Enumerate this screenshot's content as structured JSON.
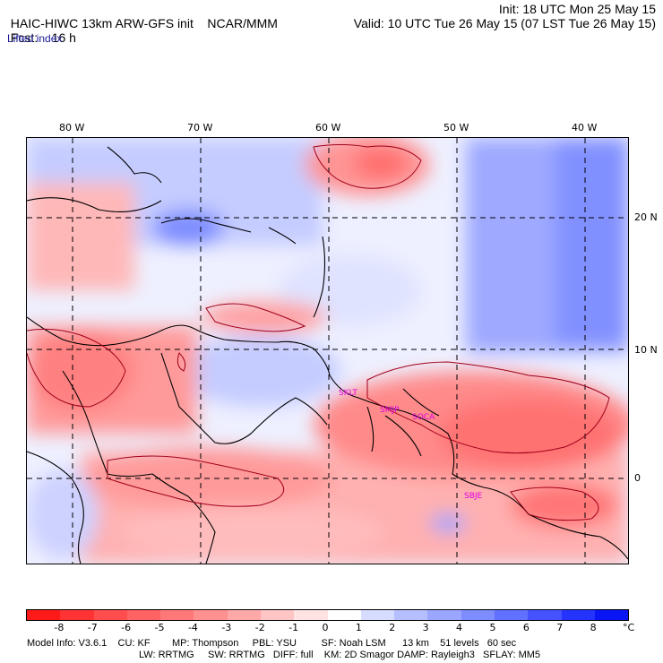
{
  "header": {
    "model": "HAIC-HIWC 13km ARW-GFS init",
    "org": "NCAR/MMM",
    "init": "Init: 18 UTC Mon 25 May 15",
    "fcst_label": "Fcst:",
    "fcst_value": "16 h",
    "valid": "Valid: 10 UTC Tue 26 May 15 (07 LST Tue 26 May 15)",
    "field": "Lifted index"
  },
  "map": {
    "lon_labels": [
      "80 W",
      "70 W",
      "60 W",
      "50 W",
      "40 W"
    ],
    "lat_labels": [
      "20 N",
      "10 N",
      "0"
    ],
    "stations": [
      "SKLT",
      "SMJP",
      "SOCA",
      "SBJE"
    ]
  },
  "colorbar": {
    "labels": [
      "-8",
      "-7",
      "-6",
      "-5",
      "-4",
      "-3",
      "-2",
      "-1",
      "0",
      "1",
      "2",
      "3",
      "4",
      "5",
      "6",
      "7",
      "8"
    ],
    "unit": "°C",
    "colors": [
      "#ff1a1a",
      "#ff3333",
      "#ff4d4d",
      "#ff6262",
      "#ff7878",
      "#ff9090",
      "#ffa8a8",
      "#ffc4c4",
      "#ffe2e2",
      "#ffffff",
      "#d6dcff",
      "#b5bfff",
      "#9aa6ff",
      "#7d8cff",
      "#6070ff",
      "#4452ff",
      "#2533ff",
      "#0a15f5"
    ]
  },
  "footer": {
    "line1": "Model Info: V3.6.1    CU: KF        MP: Thompson     PBL: YSU         SF: Noah LSM      13 km    51 levels   60 sec",
    "line2": "LW: RRTMG     SW: RRTMG   DIFF: full    KM: 2D Smagor DAMP: Rayleigh3   SFLAY: MM5"
  }
}
